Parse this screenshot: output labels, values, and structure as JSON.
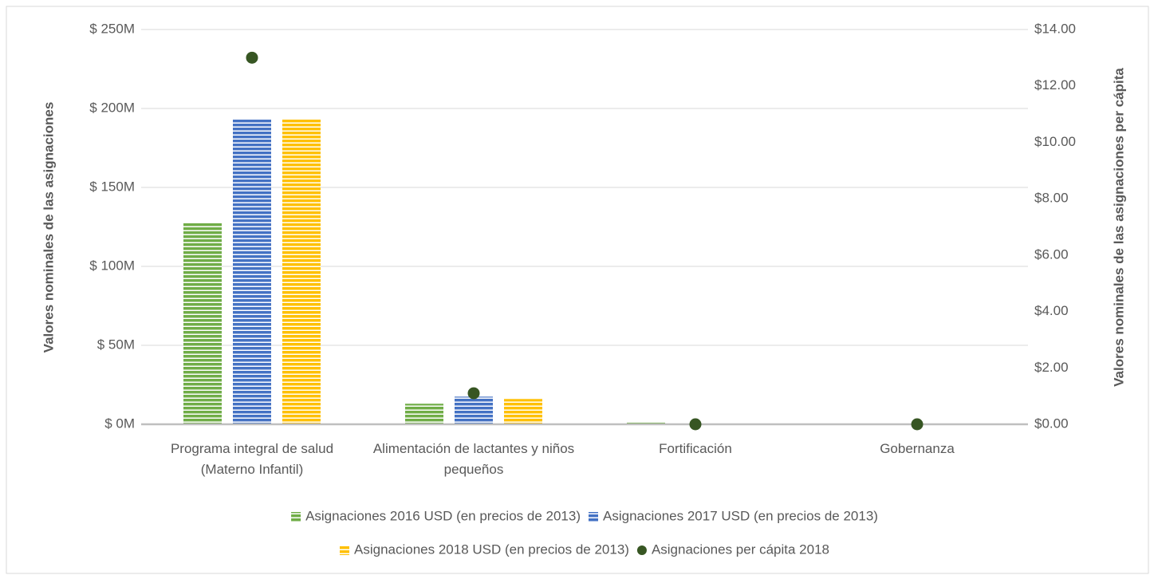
{
  "chart_data": {
    "type": "bar",
    "y_label": "Valores nominales de las asignaciones",
    "y2_label": "Valores  nominales de las asignaciones per cápita",
    "categories": [
      "Programa integral de salud (Materno Infantil)",
      "Alimentación de lactantes y niños pequeños",
      "Fortificación",
      "Gobernanza"
    ],
    "series": [
      {
        "name": "Asignaciones 2016 USD (en precios de 2013)",
        "color": "#70ad47",
        "values": [
          128,
          13,
          1,
          0
        ]
      },
      {
        "name": "Asignaciones 2017 USD (en precios de 2013)",
        "color": "#4472c4",
        "values": [
          193,
          17.5,
          0,
          0
        ]
      },
      {
        "name": "Asignaciones 2018 USD (en precios de 2013)",
        "color": "#ffc000",
        "values": [
          193,
          16,
          0,
          0
        ]
      },
      {
        "name": "Asignaciones per cápita 2018",
        "color": "#375623",
        "axis": "y2",
        "values": [
          13.0,
          1.1,
          0,
          0
        ]
      }
    ],
    "ylim": [
      0,
      250
    ],
    "yticks": [
      {
        "value": 0,
        "label": "$ 0M"
      },
      {
        "value": 50,
        "label": "$ 50M"
      },
      {
        "value": 100,
        "label": "$ 100M"
      },
      {
        "value": 150,
        "label": "$ 150M"
      },
      {
        "value": 200,
        "label": "$ 200M"
      },
      {
        "value": 250,
        "label": "$ 250M"
      }
    ],
    "y2lim": [
      0,
      14
    ],
    "y2ticks": [
      {
        "value": 0,
        "label": "$0.00"
      },
      {
        "value": 2,
        "label": "$2.00"
      },
      {
        "value": 4,
        "label": "$4.00"
      },
      {
        "value": 6,
        "label": "$6.00"
      },
      {
        "value": 8,
        "label": "$8.00"
      },
      {
        "value": 10,
        "label": "$10.00"
      },
      {
        "value": 12,
        "label": "$12.00"
      },
      {
        "value": 14,
        "label": "$14.00"
      }
    ],
    "grid": true,
    "legend": "bottom"
  }
}
